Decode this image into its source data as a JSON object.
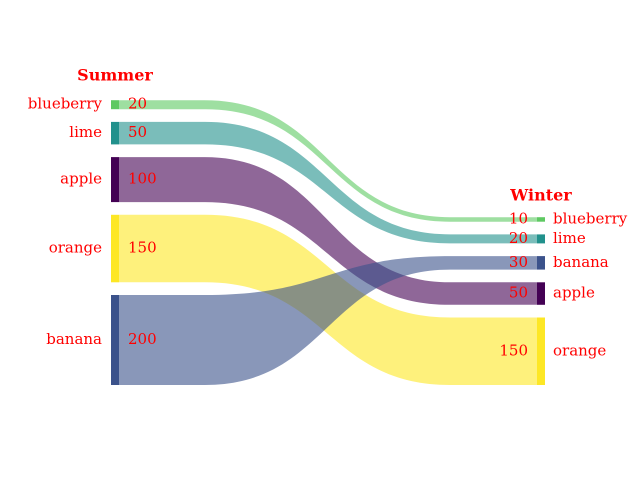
{
  "chart_data": {
    "type": "sankey",
    "left": {
      "title": "Summer",
      "nodes": [
        {
          "name": "blueberry",
          "value": 20,
          "color": "#5ec962"
        },
        {
          "name": "lime",
          "value": 50,
          "color": "#21918c"
        },
        {
          "name": "apple",
          "value": 100,
          "color": "#440154"
        },
        {
          "name": "orange",
          "value": 150,
          "color": "#fde725"
        },
        {
          "name": "banana",
          "value": 200,
          "color": "#3b528b"
        }
      ]
    },
    "right": {
      "title": "Winter",
      "nodes": [
        {
          "name": "blueberry",
          "value": 10,
          "color": "#5ec962"
        },
        {
          "name": "lime",
          "value": 20,
          "color": "#21918c"
        },
        {
          "name": "banana",
          "value": 30,
          "color": "#3b528b"
        },
        {
          "name": "apple",
          "value": 50,
          "color": "#440154"
        },
        {
          "name": "orange",
          "value": 150,
          "color": "#fde725"
        }
      ]
    },
    "label_color": "#ff0000"
  }
}
